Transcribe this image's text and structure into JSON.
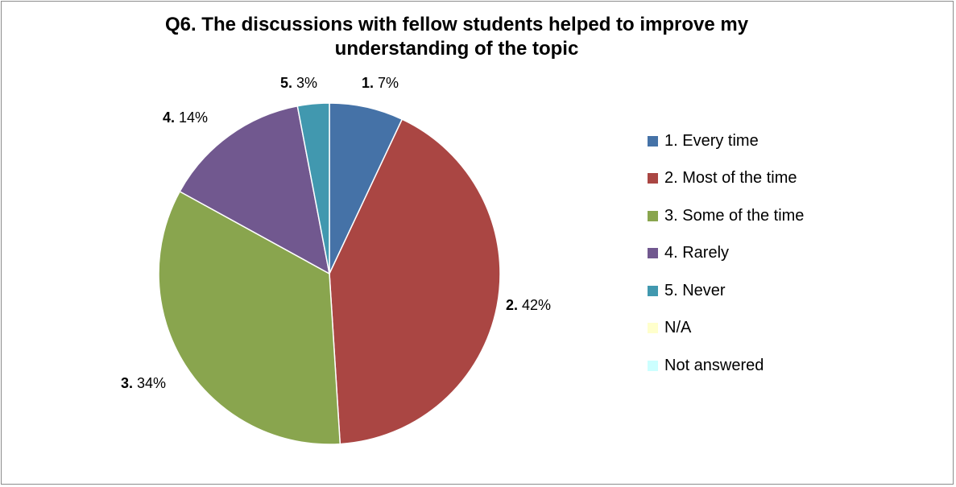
{
  "chart_data": {
    "type": "pie",
    "title_lines": [
      "Q6. The discussions with fellow students helped to improve my",
      "understanding of the topic"
    ],
    "slices": [
      {
        "label_num": "1.",
        "label_pct": "7%",
        "value": 7,
        "color": "#4572a7"
      },
      {
        "label_num": "2.",
        "label_pct": "42%",
        "value": 42,
        "color": "#aa4643"
      },
      {
        "label_num": "3.",
        "label_pct": "34%",
        "value": 34,
        "color": "#89a54e"
      },
      {
        "label_num": "4.",
        "label_pct": "14%",
        "value": 14,
        "color": "#71588f"
      },
      {
        "label_num": "5.",
        "label_pct": "3%",
        "value": 3,
        "color": "#4198af"
      }
    ],
    "legend": [
      {
        "label": "1. Every time",
        "color": "#4572a7"
      },
      {
        "label": "2. Most of the time",
        "color": "#aa4643"
      },
      {
        "label": "3. Some of the time",
        "color": "#89a54e"
      },
      {
        "label": "4. Rarely",
        "color": "#71588f"
      },
      {
        "label": "5. Never",
        "color": "#4198af"
      },
      {
        "label": "N/A",
        "color": "#ffffcc"
      },
      {
        "label": "Not answered",
        "color": "#ccffff"
      }
    ],
    "legend_position": "right"
  }
}
